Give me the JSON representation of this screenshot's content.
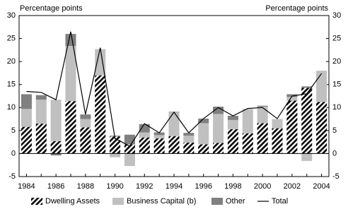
{
  "chart_data": {
    "type": "bar",
    "stacked": true,
    "ylabel": "Percentage points",
    "y2label": "Percentage points",
    "categories": [
      "1984",
      null,
      "1986",
      null,
      "1988",
      null,
      "1990",
      null,
      "1992",
      null,
      "1994",
      null,
      "1996",
      null,
      "1998",
      null,
      "2000",
      null,
      "2002",
      null,
      "2004"
    ],
    "series": [
      {
        "name": "Dwelling Assets",
        "color": "#000000",
        "pattern": "diagonal",
        "values": [
          5.8,
          6.5,
          2.7,
          11.4,
          5.7,
          17.0,
          3.7,
          2.0,
          3.5,
          3.3,
          3.8,
          2.4,
          2.0,
          2.3,
          5.3,
          4.4,
          6.6,
          5.5,
          11.5,
          14.3,
          11.2
        ]
      },
      {
        "name": "Business Capital (b)",
        "color": "#c0c0c0",
        "values": [
          3.9,
          5.2,
          9.0,
          12.0,
          1.8,
          5.7,
          -0.8,
          -2.7,
          1.1,
          0.7,
          5.2,
          1.5,
          4.6,
          6.3,
          2.0,
          5.3,
          3.6,
          2.0,
          0.8,
          -1.6,
          6.8
        ]
      },
      {
        "name": "Other",
        "color": "#808080",
        "values": [
          3.2,
          1.0,
          -0.4,
          2.6,
          1.0,
          0.0,
          0.2,
          2.1,
          1.8,
          0.6,
          0.1,
          0.6,
          1.0,
          1.6,
          0.9,
          0.0,
          0.2,
          0.0,
          0.6,
          0.3,
          0.0
        ]
      },
      {
        "name": "Total",
        "type": "line",
        "color": "#000000",
        "values": [
          13.5,
          13.3,
          11.7,
          26.5,
          8.5,
          23.0,
          3.3,
          1.6,
          6.5,
          4.5,
          9.0,
          4.5,
          7.6,
          10.0,
          8.2,
          9.8,
          10.0,
          7.6,
          12.5,
          13.0,
          17.4
        ]
      }
    ],
    "ylim": [
      -5,
      30
    ],
    "yticks": [
      -5,
      0,
      5,
      10,
      15,
      20,
      25,
      30
    ],
    "y2lim": [
      -5,
      30
    ],
    "y2ticks": [
      -5,
      0,
      5,
      10,
      15,
      20,
      25,
      30
    ],
    "grid": false,
    "legend": "bottom"
  }
}
